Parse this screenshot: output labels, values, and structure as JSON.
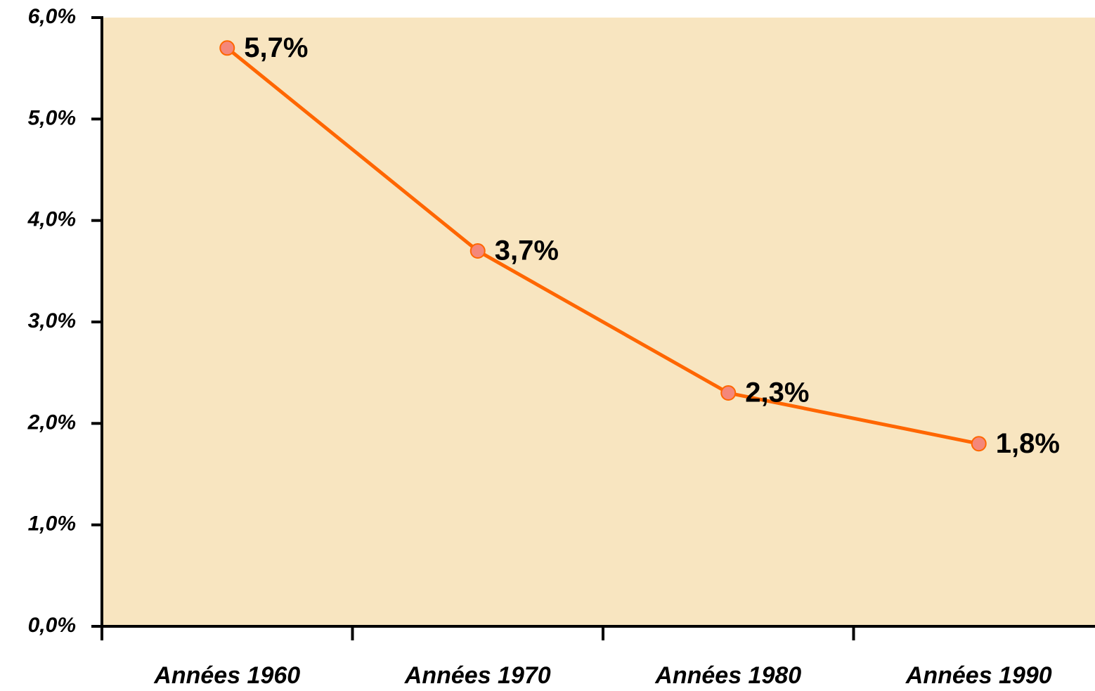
{
  "chart_data": {
    "type": "line",
    "categories": [
      "Années 1960",
      "Années 1970",
      "Années 1980",
      "Années 1990"
    ],
    "series": [
      {
        "name": null,
        "color": "#ff6600",
        "marker_color": "#f4877a",
        "values": [
          5.7,
          3.7,
          2.3,
          1.8
        ],
        "value_labels": [
          "5,7%",
          "3,7%",
          "2,3%",
          "1,8%"
        ]
      }
    ],
    "ylim": [
      0,
      6
    ],
    "yticks": [
      {
        "value": 0,
        "label": "0,0%"
      },
      {
        "value": 1,
        "label": "1,0%"
      },
      {
        "value": 2,
        "label": "2,0%"
      },
      {
        "value": 3,
        "label": "3,0%"
      },
      {
        "value": 4,
        "label": "4,0%"
      },
      {
        "value": 5,
        "label": "5,0%"
      },
      {
        "value": 6,
        "label": "6,0%"
      }
    ],
    "grid": false
  }
}
